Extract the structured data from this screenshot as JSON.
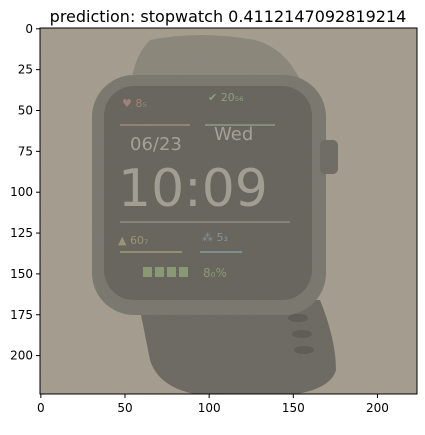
{
  "figure": {
    "title": "prediction: stopwatch 0.4112147092819214"
  },
  "axes": {
    "x_ticks": [
      0,
      50,
      100,
      150,
      200
    ],
    "y_ticks": [
      0,
      25,
      50,
      75,
      100,
      125,
      150,
      175,
      200
    ],
    "xlim": [
      -0.5,
      223.5
    ],
    "ylim": [
      223.5,
      -0.5
    ]
  },
  "image": {
    "description_colors": {
      "background": "#a59e8f",
      "case": "#6c6a63",
      "screen": "#57554f",
      "strap": "#5d5b55"
    },
    "watch_screen": {
      "time": "10:09",
      "date": "06/23",
      "day": "Wed"
    }
  }
}
